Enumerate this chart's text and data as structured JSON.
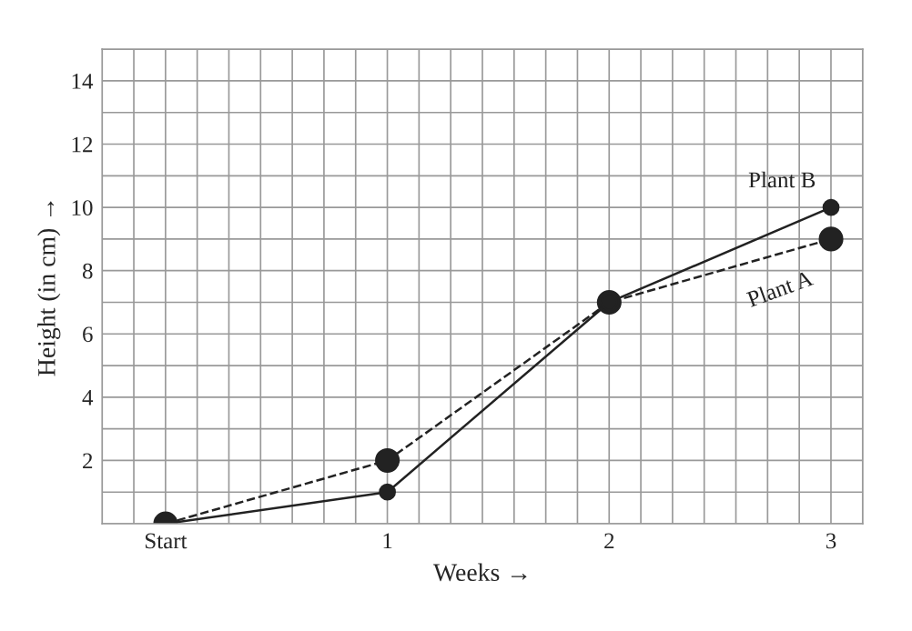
{
  "chart_data": {
    "type": "line",
    "xlabel": "Weeks →",
    "ylabel": "Height (in cm) →",
    "x": [
      0,
      1,
      2,
      3
    ],
    "series": [
      {
        "name": "Plant A",
        "color": "#222222",
        "line_style": "dashed",
        "values": [
          0,
          2,
          7,
          9
        ]
      },
      {
        "name": "Plant B",
        "color": "#222222",
        "line_style": "solid",
        "values": [
          0,
          1,
          7,
          10
        ]
      }
    ],
    "xlim": [
      -0.286,
      3.143
    ],
    "xticks": [
      {
        "value": 0,
        "label": "Start"
      },
      1,
      2,
      3
    ],
    "ylim": [
      0,
      15
    ],
    "yticks": [
      2,
      4,
      6,
      8,
      10,
      12,
      14
    ],
    "grid": true,
    "marker": "circle",
    "legend": false
  }
}
